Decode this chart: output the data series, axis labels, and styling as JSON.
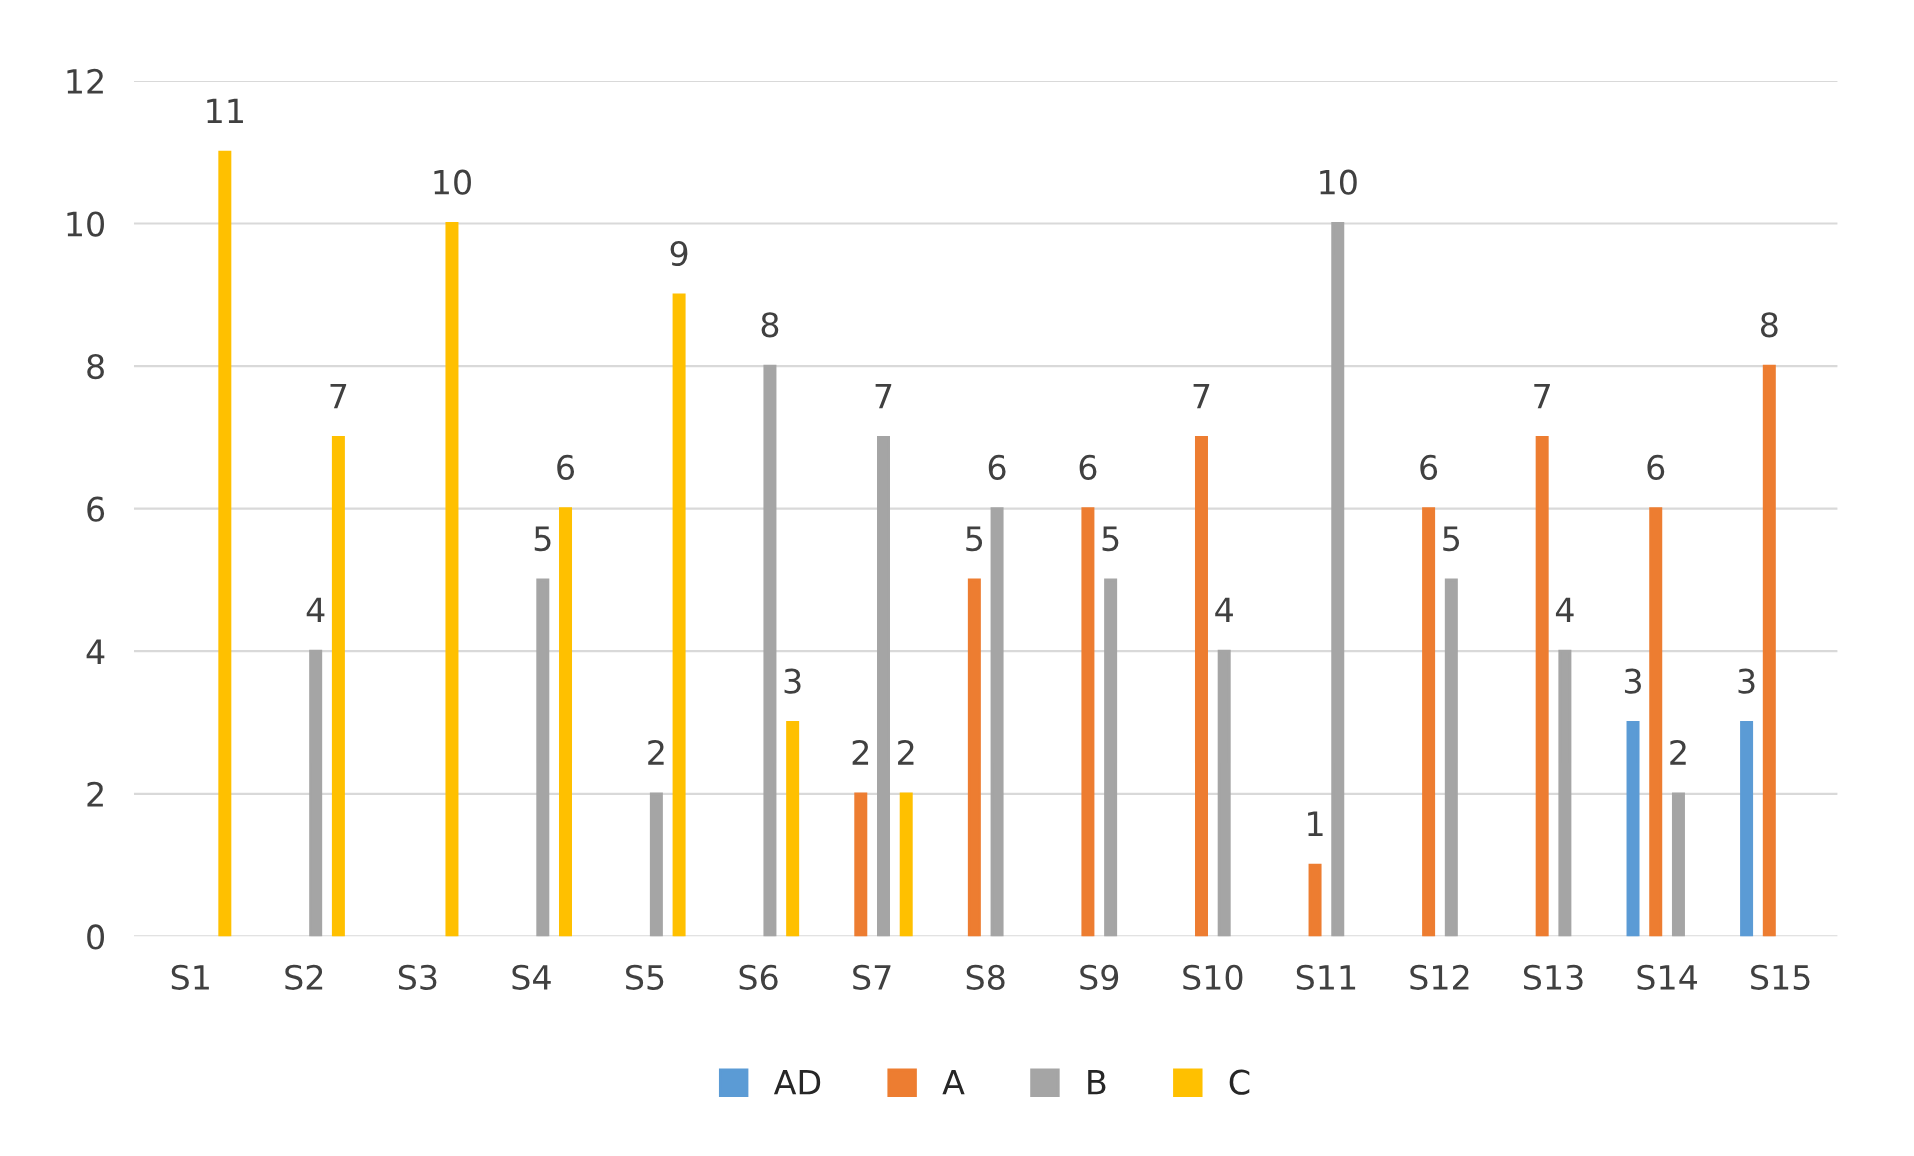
{
  "chart_data": {
    "type": "bar",
    "categories": [
      "S1",
      "S2",
      "S3",
      "S4",
      "S5",
      "S6",
      "S7",
      "S8",
      "S9",
      "S10",
      "S11",
      "S12",
      "S13",
      "S14",
      "S15"
    ],
    "series": [
      {
        "name": "AD",
        "color": "#5b9bd5",
        "values": [
          null,
          null,
          null,
          null,
          null,
          null,
          null,
          null,
          null,
          null,
          null,
          null,
          null,
          3,
          3
        ]
      },
      {
        "name": "A",
        "color": "#ed7d31",
        "values": [
          null,
          null,
          null,
          null,
          null,
          null,
          2,
          5,
          6,
          7,
          1,
          6,
          7,
          6,
          8
        ]
      },
      {
        "name": "B",
        "color": "#a5a5a5",
        "values": [
          null,
          4,
          null,
          5,
          2,
          8,
          7,
          6,
          5,
          4,
          10,
          5,
          4,
          2,
          null
        ]
      },
      {
        "name": "C",
        "color": "#ffc000",
        "values": [
          11,
          7,
          10,
          6,
          9,
          3,
          2,
          null,
          null,
          null,
          null,
          null,
          null,
          null,
          null
        ]
      }
    ],
    "ylim": [
      0,
      12
    ],
    "yticks": [
      0,
      2,
      4,
      6,
      8,
      10,
      12
    ],
    "grid": "y",
    "legend": "bottom",
    "data_labels": true
  }
}
